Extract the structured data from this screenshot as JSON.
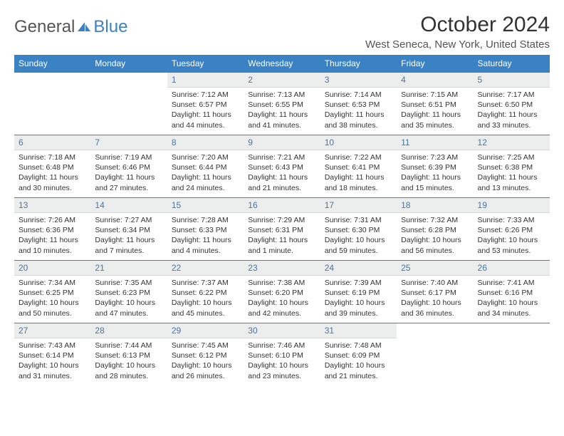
{
  "brand": {
    "part1": "General",
    "part2": "Blue"
  },
  "title": "October 2024",
  "location": "West Seneca, New York, United States",
  "colors": {
    "header_bg": "#3b82c4",
    "header_text": "#ffffff",
    "daynum_bg": "#eceded",
    "daynum_text": "#4a75a0",
    "body_text": "#333333",
    "logo_gray": "#555555",
    "logo_blue": "#3b82c4",
    "week_border": "#3b82c4"
  },
  "weekdays": [
    "Sunday",
    "Monday",
    "Tuesday",
    "Wednesday",
    "Thursday",
    "Friday",
    "Saturday"
  ],
  "layout": {
    "first_day_column": 2,
    "days_in_month": 31
  },
  "days": [
    {
      "n": 1,
      "sunrise": "7:12 AM",
      "sunset": "6:57 PM",
      "daylight": "11 hours and 44 minutes."
    },
    {
      "n": 2,
      "sunrise": "7:13 AM",
      "sunset": "6:55 PM",
      "daylight": "11 hours and 41 minutes."
    },
    {
      "n": 3,
      "sunrise": "7:14 AM",
      "sunset": "6:53 PM",
      "daylight": "11 hours and 38 minutes."
    },
    {
      "n": 4,
      "sunrise": "7:15 AM",
      "sunset": "6:51 PM",
      "daylight": "11 hours and 35 minutes."
    },
    {
      "n": 5,
      "sunrise": "7:17 AM",
      "sunset": "6:50 PM",
      "daylight": "11 hours and 33 minutes."
    },
    {
      "n": 6,
      "sunrise": "7:18 AM",
      "sunset": "6:48 PM",
      "daylight": "11 hours and 30 minutes."
    },
    {
      "n": 7,
      "sunrise": "7:19 AM",
      "sunset": "6:46 PM",
      "daylight": "11 hours and 27 minutes."
    },
    {
      "n": 8,
      "sunrise": "7:20 AM",
      "sunset": "6:44 PM",
      "daylight": "11 hours and 24 minutes."
    },
    {
      "n": 9,
      "sunrise": "7:21 AM",
      "sunset": "6:43 PM",
      "daylight": "11 hours and 21 minutes."
    },
    {
      "n": 10,
      "sunrise": "7:22 AM",
      "sunset": "6:41 PM",
      "daylight": "11 hours and 18 minutes."
    },
    {
      "n": 11,
      "sunrise": "7:23 AM",
      "sunset": "6:39 PM",
      "daylight": "11 hours and 15 minutes."
    },
    {
      "n": 12,
      "sunrise": "7:25 AM",
      "sunset": "6:38 PM",
      "daylight": "11 hours and 13 minutes."
    },
    {
      "n": 13,
      "sunrise": "7:26 AM",
      "sunset": "6:36 PM",
      "daylight": "11 hours and 10 minutes."
    },
    {
      "n": 14,
      "sunrise": "7:27 AM",
      "sunset": "6:34 PM",
      "daylight": "11 hours and 7 minutes."
    },
    {
      "n": 15,
      "sunrise": "7:28 AM",
      "sunset": "6:33 PM",
      "daylight": "11 hours and 4 minutes."
    },
    {
      "n": 16,
      "sunrise": "7:29 AM",
      "sunset": "6:31 PM",
      "daylight": "11 hours and 1 minute."
    },
    {
      "n": 17,
      "sunrise": "7:31 AM",
      "sunset": "6:30 PM",
      "daylight": "10 hours and 59 minutes."
    },
    {
      "n": 18,
      "sunrise": "7:32 AM",
      "sunset": "6:28 PM",
      "daylight": "10 hours and 56 minutes."
    },
    {
      "n": 19,
      "sunrise": "7:33 AM",
      "sunset": "6:26 PM",
      "daylight": "10 hours and 53 minutes."
    },
    {
      "n": 20,
      "sunrise": "7:34 AM",
      "sunset": "6:25 PM",
      "daylight": "10 hours and 50 minutes."
    },
    {
      "n": 21,
      "sunrise": "7:35 AM",
      "sunset": "6:23 PM",
      "daylight": "10 hours and 47 minutes."
    },
    {
      "n": 22,
      "sunrise": "7:37 AM",
      "sunset": "6:22 PM",
      "daylight": "10 hours and 45 minutes."
    },
    {
      "n": 23,
      "sunrise": "7:38 AM",
      "sunset": "6:20 PM",
      "daylight": "10 hours and 42 minutes."
    },
    {
      "n": 24,
      "sunrise": "7:39 AM",
      "sunset": "6:19 PM",
      "daylight": "10 hours and 39 minutes."
    },
    {
      "n": 25,
      "sunrise": "7:40 AM",
      "sunset": "6:17 PM",
      "daylight": "10 hours and 36 minutes."
    },
    {
      "n": 26,
      "sunrise": "7:41 AM",
      "sunset": "6:16 PM",
      "daylight": "10 hours and 34 minutes."
    },
    {
      "n": 27,
      "sunrise": "7:43 AM",
      "sunset": "6:14 PM",
      "daylight": "10 hours and 31 minutes."
    },
    {
      "n": 28,
      "sunrise": "7:44 AM",
      "sunset": "6:13 PM",
      "daylight": "10 hours and 28 minutes."
    },
    {
      "n": 29,
      "sunrise": "7:45 AM",
      "sunset": "6:12 PM",
      "daylight": "10 hours and 26 minutes."
    },
    {
      "n": 30,
      "sunrise": "7:46 AM",
      "sunset": "6:10 PM",
      "daylight": "10 hours and 23 minutes."
    },
    {
      "n": 31,
      "sunrise": "7:48 AM",
      "sunset": "6:09 PM",
      "daylight": "10 hours and 21 minutes."
    }
  ],
  "labels": {
    "sunrise": "Sunrise:",
    "sunset": "Sunset:",
    "daylight": "Daylight:"
  }
}
